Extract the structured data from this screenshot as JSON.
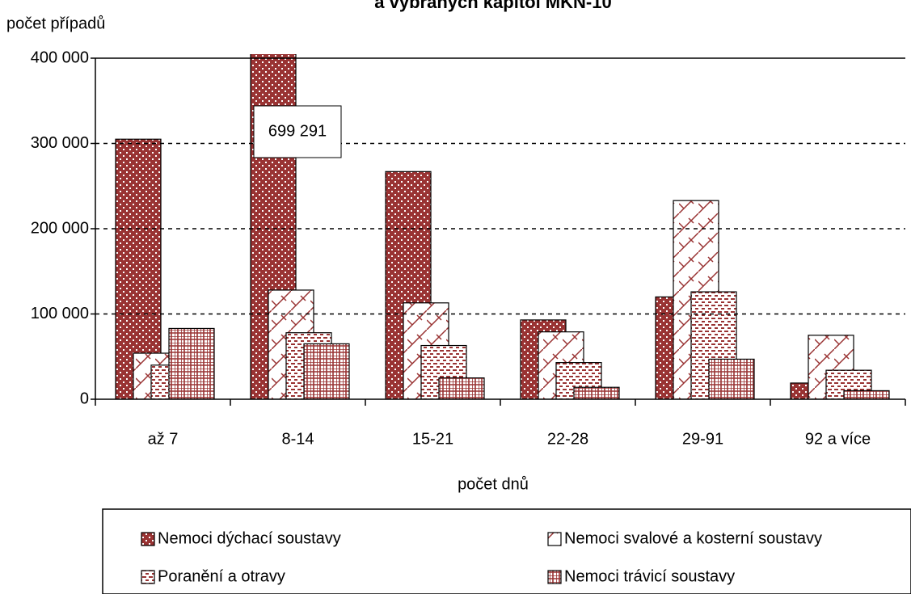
{
  "chart_data": {
    "type": "bar",
    "title": "a vybraných kapitol MKN-10",
    "y_label": "počet případů",
    "x_label": "počet dnů",
    "categories": [
      "až 7",
      "8-14",
      "15-21",
      "22-28",
      "29-91",
      "92 a více"
    ],
    "series": [
      {
        "name": "Nemoci dýchací soustavy",
        "color": "#993333",
        "values": [
          305000,
          699291,
          267000,
          93000,
          120000,
          19000
        ],
        "value_labels": [
          null,
          "699 291",
          null,
          null,
          null,
          null
        ]
      },
      {
        "name": "Nemoci svalové a kosterní soustavy",
        "color": "#993333",
        "values": [
          54000,
          128000,
          113000,
          79000,
          233000,
          75000
        ]
      },
      {
        "name": "Poranění a otravy",
        "color": "#993333",
        "values": [
          40000,
          78000,
          63000,
          43000,
          126000,
          34000
        ]
      },
      {
        "name": "Nemoci trávicí soustavy",
        "color": "#993333",
        "values": [
          83000,
          65000,
          25000,
          14000,
          47000,
          10000
        ]
      }
    ],
    "ylim": [
      0,
      400000
    ],
    "yticks": [
      0,
      {
        "value": 100000,
        "label": "100 000"
      },
      {
        "value": 200000,
        "label": "200 000"
      },
      {
        "value": 300000,
        "label": "300 000"
      },
      {
        "value": 400000,
        "label": "400 000"
      }
    ],
    "grid": true
  }
}
